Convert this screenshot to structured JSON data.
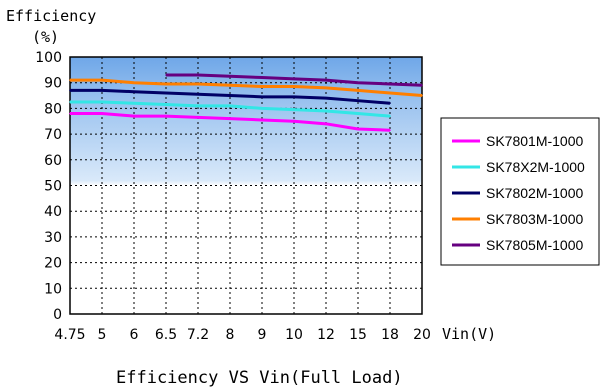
{
  "chart_data": {
    "type": "line",
    "title": "Efficiency VS Vin(Full Load)",
    "ylabel_line1": "Efficiency",
    "ylabel_line2": "(%)",
    "xlabel": "Vin(V)",
    "x": [
      "4.75",
      "5",
      "6",
      "6.5",
      "7.2",
      "8",
      "9",
      "10",
      "12",
      "15",
      "18",
      "20"
    ],
    "yticks": [
      "0",
      "10",
      "20",
      "30",
      "40",
      "50",
      "60",
      "70",
      "80",
      "90",
      "100"
    ],
    "ylim": [
      0,
      100
    ],
    "grid": true,
    "legend_position": "right",
    "series": [
      {
        "name": "SK7801M-1000",
        "color": "#ff00ff",
        "values": [
          78,
          78,
          77,
          77,
          76.5,
          76,
          75.5,
          75,
          74,
          72,
          71.5,
          null
        ]
      },
      {
        "name": "SK78X2M-1000",
        "color": "#33e6e6",
        "values": [
          82.5,
          82.5,
          82,
          81.5,
          81,
          81,
          80,
          79.5,
          79,
          78,
          77,
          null
        ]
      },
      {
        "name": "SK7802M-1000",
        "color": "#000066",
        "values": [
          87,
          87,
          86.5,
          86,
          85.5,
          85,
          84.5,
          84.5,
          84,
          83,
          82,
          null
        ]
      },
      {
        "name": "SK7803M-1000",
        "color": "#ff7f00",
        "values": [
          91,
          91,
          90,
          89.5,
          89.5,
          89,
          88.5,
          88.5,
          88,
          87,
          86,
          85
        ]
      },
      {
        "name": "SK7805M-1000",
        "color": "#660080",
        "values": [
          null,
          null,
          null,
          93,
          93,
          92.5,
          92,
          91.5,
          91,
          90,
          89.5,
          89
        ]
      }
    ]
  }
}
